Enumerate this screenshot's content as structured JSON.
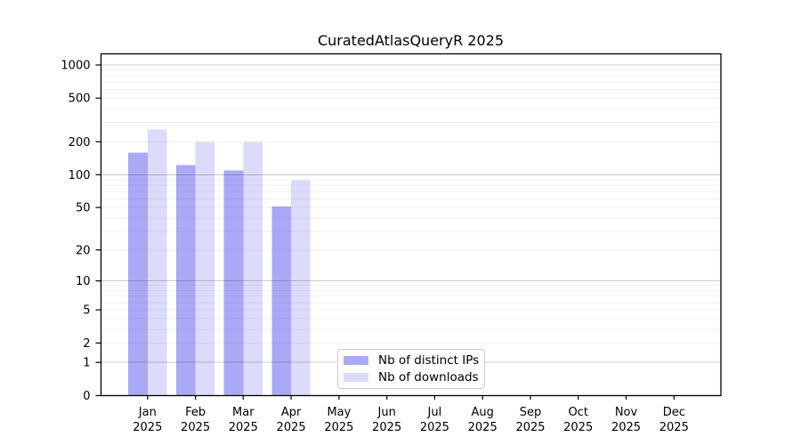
{
  "chart_data": {
    "type": "bar",
    "title": "CuratedAtlasQueryR 2025",
    "year_label": "2025",
    "categories": [
      "Jan",
      "Feb",
      "Mar",
      "Apr",
      "May",
      "Jun",
      "Jul",
      "Aug",
      "Sep",
      "Oct",
      "Nov",
      "Dec"
    ],
    "series": [
      {
        "name": "Nb of distinct IPs",
        "color": "#a9a9f6",
        "values": [
          160,
          122,
          110,
          51,
          null,
          null,
          null,
          null,
          null,
          null,
          null,
          null
        ]
      },
      {
        "name": "Nb of downloads",
        "color": "#dbdbfa",
        "values": [
          259,
          199,
          199,
          89,
          null,
          null,
          null,
          null,
          null,
          null,
          null,
          null
        ]
      }
    ],
    "yticks": [
      0,
      1,
      2,
      5,
      10,
      20,
      50,
      100,
      200,
      500,
      1000
    ],
    "ylim": [
      0,
      1000
    ],
    "scale": "log1p",
    "grid": true,
    "legend_position": "bottom-center-inside",
    "colors": {
      "major_grid": "#cccccc",
      "minor_grid": "#f2f2f2",
      "axis": "#000000",
      "background": "#ffffff"
    }
  }
}
